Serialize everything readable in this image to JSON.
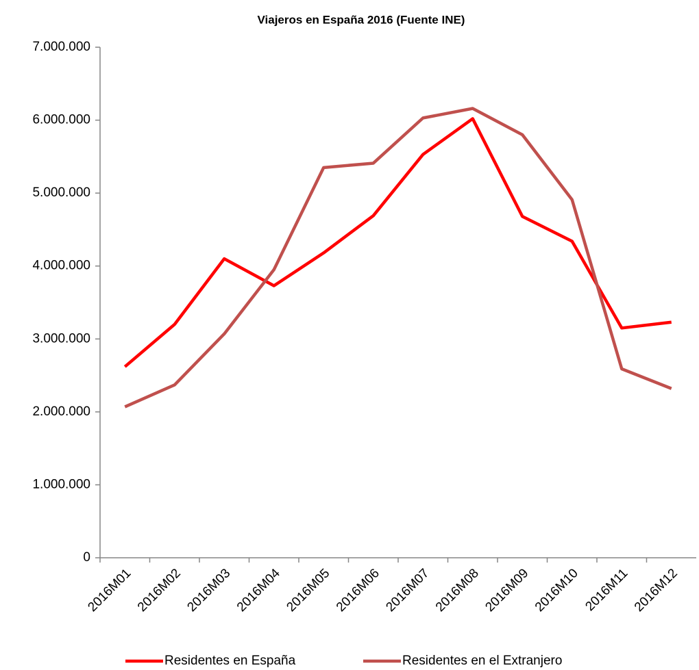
{
  "chart_data": {
    "type": "line",
    "title": "Viajeros en España 2016 (Fuente INE)",
    "categories": [
      "2016M01",
      "2016M02",
      "2016M03",
      "2016M04",
      "2016M05",
      "2016M06",
      "2016M07",
      "2016M08",
      "2016M09",
      "2016M10",
      "2016M11",
      "2016M12"
    ],
    "series": [
      {
        "name": "Residentes en España",
        "color": "#ff0000",
        "values": [
          2620000,
          3200000,
          4100000,
          3730000,
          4180000,
          4690000,
          5530000,
          6020000,
          4680000,
          4340000,
          3150000,
          3230000
        ]
      },
      {
        "name": "Residentes en el Extranjero",
        "color": "#c0504d",
        "values": [
          2070000,
          2370000,
          3070000,
          3950000,
          5350000,
          5410000,
          6030000,
          6160000,
          5800000,
          4910000,
          2590000,
          2320000
        ]
      }
    ],
    "ylim": [
      0,
      7000000
    ],
    "yticks": [
      0,
      {
        "value": 1000000,
        "label": "1.000.000"
      },
      {
        "value": 2000000,
        "label": "2.000.000"
      },
      {
        "value": 3000000,
        "label": "3.000.000"
      },
      {
        "value": 4000000,
        "label": "4.000.000"
      },
      {
        "value": 5000000,
        "label": "5.000.000"
      },
      {
        "value": 6000000,
        "label": "6.000.000"
      },
      {
        "value": 7000000,
        "label": "7.000.000"
      }
    ],
    "grid": false,
    "legend": "bottom"
  }
}
